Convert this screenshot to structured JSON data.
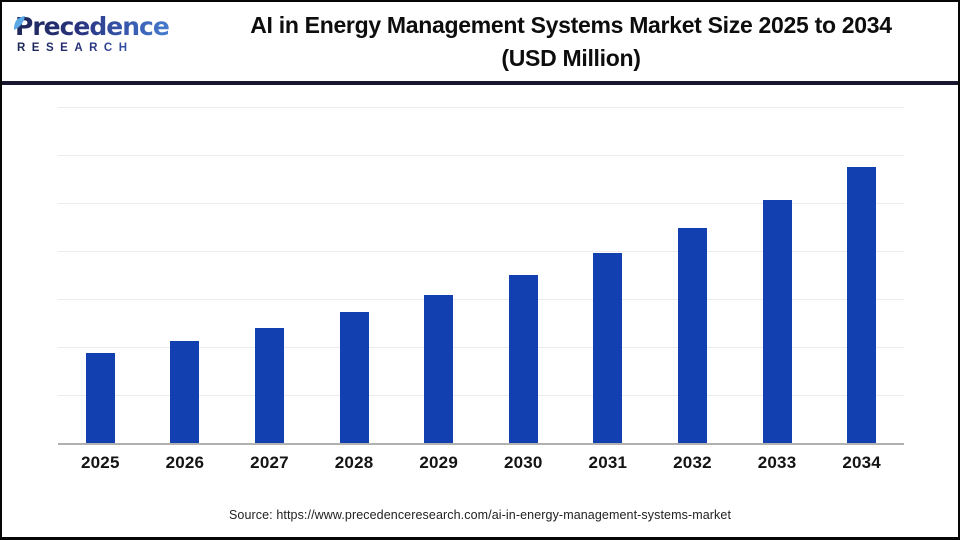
{
  "header": {
    "logo": {
      "line1": "Precedence",
      "line2": "RESEARCH",
      "color_dark": "#1d2757",
      "color_light": "#4a8ad4",
      "leaf_color": "#5aa9e6"
    },
    "title_line1": "AI in Energy Management Systems Market Size 2025 to 2034",
    "title_line2": "(USD Million)",
    "divider_color": "#17172f"
  },
  "chart_data": {
    "type": "bar",
    "title": "AI in Energy Management Systems Market Size 2025 to 2034 (USD Million)",
    "unit": "USD Million",
    "categories": [
      "2025",
      "2026",
      "2027",
      "2028",
      "2029",
      "2030",
      "2031",
      "2032",
      "2033",
      "2034"
    ],
    "values": [
      9400,
      10650,
      12000,
      13650,
      15400,
      17500,
      19800,
      22400,
      25300,
      28750
    ],
    "xlabel": "",
    "ylabel": "",
    "ylim": [
      0,
      35000
    ],
    "gridline_step": 5000,
    "grid": "horizontal",
    "y_axis_labels": "none",
    "legend": "none",
    "bar_color": "#1340b0",
    "baseline_color": "#b1b1b1",
    "gridline_color": "#ececec"
  },
  "footer": {
    "source_text": "Source: https://www.precedenceresearch.com/ai-in-energy-management-systems-market"
  }
}
